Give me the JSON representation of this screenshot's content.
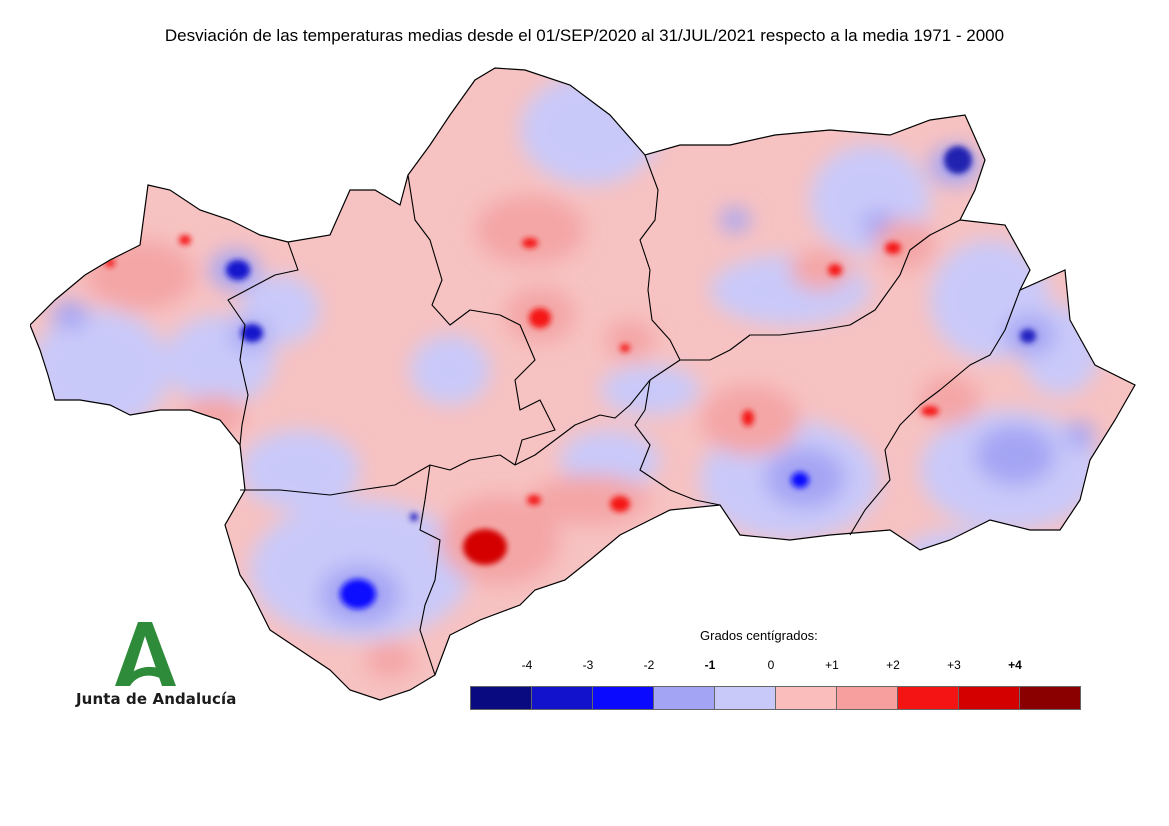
{
  "title": "Desviación de las temperaturas medias desde el 01/SEP/2020 al 31/JUL/2021 respecto a la media 1971 - 2000",
  "logo": {
    "text": "Junta de Andalucía",
    "icon": "junta-de-andalucia-logo",
    "color": "#2e8b3a"
  },
  "legend": {
    "title": "Grados centígrados:",
    "labels": [
      {
        "text": "-4",
        "bold": false
      },
      {
        "text": "-3",
        "bold": false
      },
      {
        "text": "-2",
        "bold": false
      },
      {
        "text": "-1",
        "bold": true
      },
      {
        "text": "0",
        "bold": false
      },
      {
        "text": "+1",
        "bold": false
      },
      {
        "text": "+2",
        "bold": false
      },
      {
        "text": "+3",
        "bold": false
      },
      {
        "text": "+4",
        "bold": true
      }
    ],
    "colors": [
      "#0a0a80",
      "#1212cc",
      "#0a0aff",
      "#a4a4f4",
      "#c9c9f9",
      "#fbbcbc",
      "#f79f9f",
      "#f51414",
      "#d40000",
      "#8a0000"
    ]
  },
  "map": {
    "region": "Andalucía",
    "boundary_color": "#000000",
    "dominant_colors": [
      "#fbbcbc",
      "#c9c9f9"
    ]
  }
}
